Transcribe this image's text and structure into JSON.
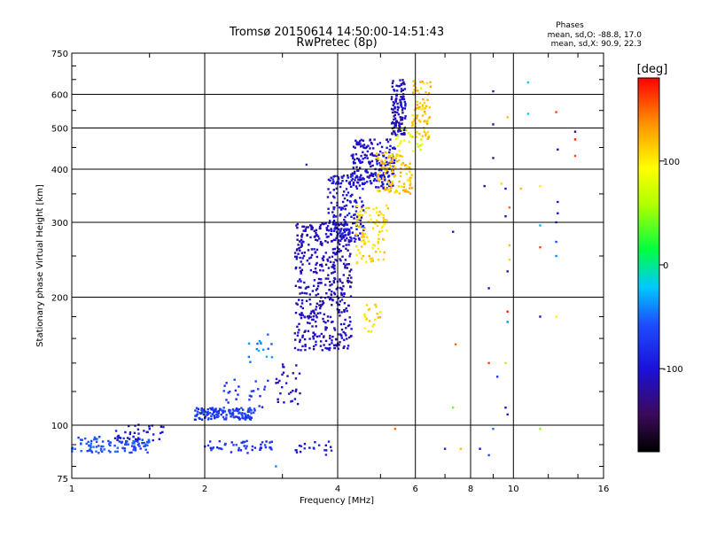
{
  "chart_data": {
    "type": "scatter",
    "title": "Tromsø 20150614 14:50:00-14:51:43",
    "subtitle": "RwPretec (8p)",
    "xlabel": "Frequency [MHz]",
    "ylabel": "Stationary phase Virtual Height [km]",
    "x_scale": "log",
    "y_scale": "log",
    "xlim": [
      1,
      16
    ],
    "ylim": [
      75,
      750
    ],
    "x_ticks": [
      1,
      2,
      4,
      6,
      8,
      10,
      16
    ],
    "x_tick_labels": [
      "1",
      "2",
      "4",
      "6",
      "8",
      "10",
      "16"
    ],
    "y_ticks": [
      75,
      100,
      200,
      300,
      400,
      500,
      600,
      750
    ],
    "y_tick_labels": [
      "75",
      "100",
      "200",
      "300",
      "400",
      "500",
      "600",
      "750"
    ],
    "grid": true,
    "phases_block": {
      "heading": "Phases",
      "line_o": "mean, sd,O: -88.8, 17.0",
      "line_x": "mean, sd,X:  90.9, 22.3"
    },
    "colorbar": {
      "label": "[deg]",
      "range": [
        -180,
        180
      ],
      "ticks": [
        100,
        0,
        -100
      ],
      "tick_labels": [
        "100",
        "0",
        "-100"
      ]
    },
    "bands": [
      {
        "x": [
          1.0,
          1.5
        ],
        "y": [
          86,
          94
        ],
        "phase": -60,
        "count": 110
      },
      {
        "x": [
          1.25,
          1.62
        ],
        "y": [
          92,
          101
        ],
        "phase": -100,
        "count": 35
      },
      {
        "x": [
          1.9,
          2.6
        ],
        "y": [
          103,
          110
        ],
        "phase": -70,
        "count": 140
      },
      {
        "x": [
          2.2,
          2.8
        ],
        "y": [
          110,
          128
        ],
        "phase": -75,
        "count": 25
      },
      {
        "x": [
          2.5,
          2.85
        ],
        "y": [
          140,
          165
        ],
        "phase": -40,
        "count": 15
      },
      {
        "x": [
          2.0,
          2.9
        ],
        "y": [
          86,
          92
        ],
        "phase": -75,
        "count": 50
      },
      {
        "x": [
          2.9,
          3.3
        ],
        "y": [
          112,
          140
        ],
        "phase": -105,
        "count": 30
      },
      {
        "x": [
          3.2,
          4.3
        ],
        "y": [
          150,
          300
        ],
        "phase": -110,
        "count": 480
      },
      {
        "x": [
          3.8,
          4.6
        ],
        "y": [
          270,
          390
        ],
        "phase": -100,
        "count": 180
      },
      {
        "x": [
          4.3,
          5.4
        ],
        "y": [
          360,
          470
        ],
        "phase": -105,
        "count": 200
      },
      {
        "x": [
          5.3,
          5.7
        ],
        "y": [
          480,
          650
        ],
        "phase": -110,
        "count": 120
      },
      {
        "x": [
          4.4,
          5.2
        ],
        "y": [
          240,
          330
        ],
        "phase": 110,
        "count": 90
      },
      {
        "x": [
          4.9,
          5.9
        ],
        "y": [
          350,
          440
        ],
        "phase": 115,
        "count": 110
      },
      {
        "x": [
          5.9,
          6.5
        ],
        "y": [
          470,
          650
        ],
        "phase": 115,
        "count": 80
      },
      {
        "x": [
          5.4,
          6.3
        ],
        "y": [
          440,
          500
        ],
        "phase": 80,
        "count": 25
      },
      {
        "x": [
          4.6,
          5.0
        ],
        "y": [
          165,
          195
        ],
        "phase": 110,
        "count": 20
      },
      {
        "x": [
          3.2,
          3.9
        ],
        "y": [
          85,
          92
        ],
        "phase": -90,
        "count": 20
      }
    ],
    "scatter": [
      {
        "x": 9.0,
        "y": 610,
        "phase": -110
      },
      {
        "x": 10.8,
        "y": 640,
        "phase": -20
      },
      {
        "x": 9.7,
        "y": 530,
        "phase": 120
      },
      {
        "x": 10.8,
        "y": 540,
        "phase": -20
      },
      {
        "x": 12.5,
        "y": 545,
        "phase": 160
      },
      {
        "x": 13.8,
        "y": 490,
        "phase": -140
      },
      {
        "x": 13.8,
        "y": 470,
        "phase": 170
      },
      {
        "x": 13.8,
        "y": 430,
        "phase": 160
      },
      {
        "x": 12.6,
        "y": 445,
        "phase": -110
      },
      {
        "x": 9.0,
        "y": 510,
        "phase": -100
      },
      {
        "x": 9.0,
        "y": 425,
        "phase": -110
      },
      {
        "x": 8.6,
        "y": 365,
        "phase": -110
      },
      {
        "x": 9.4,
        "y": 370,
        "phase": 110
      },
      {
        "x": 9.6,
        "y": 360,
        "phase": -100
      },
      {
        "x": 10.4,
        "y": 360,
        "phase": 120
      },
      {
        "x": 11.5,
        "y": 365,
        "phase": 100
      },
      {
        "x": 9.8,
        "y": 325,
        "phase": 150
      },
      {
        "x": 9.6,
        "y": 310,
        "phase": -110
      },
      {
        "x": 12.6,
        "y": 335,
        "phase": -100
      },
      {
        "x": 12.6,
        "y": 315,
        "phase": -100
      },
      {
        "x": 11.5,
        "y": 295,
        "phase": -30
      },
      {
        "x": 12.5,
        "y": 300,
        "phase": -60
      },
      {
        "x": 9.8,
        "y": 265,
        "phase": 120
      },
      {
        "x": 11.5,
        "y": 262,
        "phase": 160
      },
      {
        "x": 12.5,
        "y": 270,
        "phase": -60
      },
      {
        "x": 12.5,
        "y": 250,
        "phase": -40
      },
      {
        "x": 9.8,
        "y": 245,
        "phase": 110
      },
      {
        "x": 9.7,
        "y": 230,
        "phase": -100
      },
      {
        "x": 7.3,
        "y": 285,
        "phase": -100
      },
      {
        "x": 8.8,
        "y": 210,
        "phase": -110
      },
      {
        "x": 9.7,
        "y": 185,
        "phase": 170
      },
      {
        "x": 9.7,
        "y": 175,
        "phase": -40
      },
      {
        "x": 11.5,
        "y": 180,
        "phase": -110
      },
      {
        "x": 12.5,
        "y": 180,
        "phase": 100
      },
      {
        "x": 7.4,
        "y": 155,
        "phase": 150
      },
      {
        "x": 8.8,
        "y": 140,
        "phase": 160
      },
      {
        "x": 9.6,
        "y": 140,
        "phase": 60
      },
      {
        "x": 9.2,
        "y": 130,
        "phase": -70
      },
      {
        "x": 7.3,
        "y": 110,
        "phase": 40
      },
      {
        "x": 9.6,
        "y": 110,
        "phase": -100
      },
      {
        "x": 9.7,
        "y": 106,
        "phase": -100
      },
      {
        "x": 5.4,
        "y": 98,
        "phase": 150
      },
      {
        "x": 7.0,
        "y": 88,
        "phase": -90
      },
      {
        "x": 7.6,
        "y": 88,
        "phase": 120
      },
      {
        "x": 8.4,
        "y": 88,
        "phase": -100
      },
      {
        "x": 8.8,
        "y": 85,
        "phase": -60
      },
      {
        "x": 9.0,
        "y": 98,
        "phase": -50
      },
      {
        "x": 11.5,
        "y": 98,
        "phase": 50
      },
      {
        "x": 2.9,
        "y": 80,
        "phase": -40
      },
      {
        "x": 3.4,
        "y": 410,
        "phase": -80
      }
    ]
  }
}
